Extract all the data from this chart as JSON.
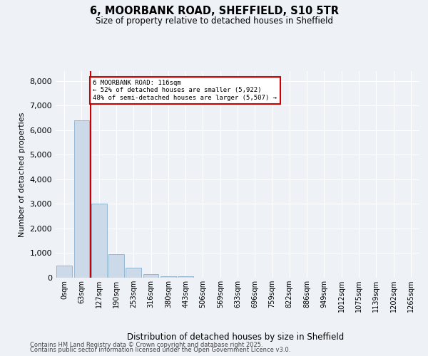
{
  "title_line1": "6, MOORBANK ROAD, SHEFFIELD, S10 5TR",
  "title_line2": "Size of property relative to detached houses in Sheffield",
  "xlabel": "Distribution of detached houses by size in Sheffield",
  "ylabel": "Number of detached properties",
  "annotation_title": "6 MOORBANK ROAD: 116sqm",
  "annotation_line2": "← 52% of detached houses are smaller (5,922)",
  "annotation_line3": "48% of semi-detached houses are larger (5,507) →",
  "bar_labels": [
    "0sqm",
    "63sqm",
    "127sqm",
    "190sqm",
    "253sqm",
    "316sqm",
    "380sqm",
    "443sqm",
    "506sqm",
    "569sqm",
    "633sqm",
    "696sqm",
    "759sqm",
    "822sqm",
    "886sqm",
    "949sqm",
    "1012sqm",
    "1075sqm",
    "1139sqm",
    "1202sqm",
    "1265sqm"
  ],
  "bar_values": [
    490,
    6400,
    3000,
    960,
    400,
    150,
    55,
    60,
    0,
    0,
    0,
    0,
    0,
    0,
    0,
    0,
    0,
    0,
    0,
    0,
    0
  ],
  "bar_color": "#ccd9e8",
  "bar_edge_color": "#8ab0cc",
  "vline_color": "#cc0000",
  "annotation_box_color": "#cc0000",
  "ylim": [
    0,
    8400
  ],
  "yticks": [
    0,
    1000,
    2000,
    3000,
    4000,
    5000,
    6000,
    7000,
    8000
  ],
  "bg_color": "#eef2f7",
  "plot_bg_color": "#eef2f7",
  "grid_color": "#ffffff",
  "footer_line1": "Contains HM Land Registry data © Crown copyright and database right 2025.",
  "footer_line2": "Contains public sector information licensed under the Open Government Licence v3.0."
}
